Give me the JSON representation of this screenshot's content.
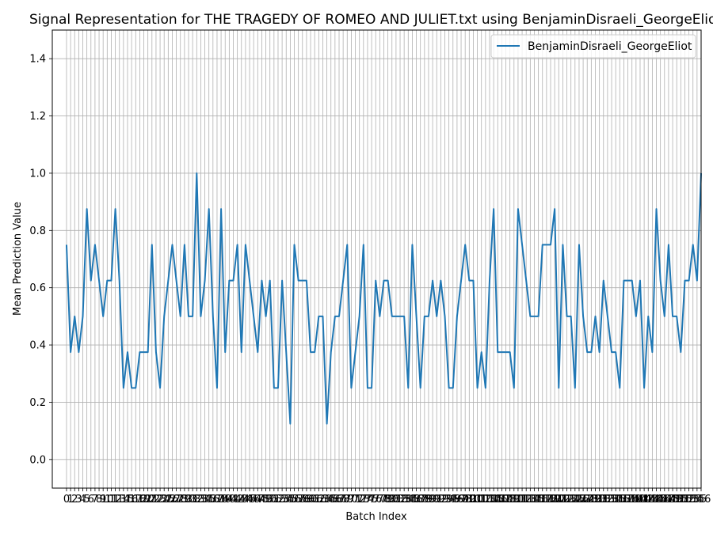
{
  "chart_data": {
    "type": "line",
    "title": "Signal Representation for THE TRAGEDY OF ROMEO AND JULIET.txt using BenjaminDisraeli_GeorgeEliot",
    "xlabel": "Batch Index",
    "ylabel": "Mean Prediction Value",
    "ylim": [
      -0.1,
      1.5
    ],
    "xlim": [
      -3.5,
      156
    ],
    "yticks": [
      "0.0",
      "0.2",
      "0.4",
      "0.6",
      "0.8",
      "1.0",
      "1.2",
      "1.4"
    ],
    "grid": true,
    "legend_position": "top-right",
    "line_color": "#1f77b4",
    "series": [
      {
        "name": "BenjaminDisraeli_GeorgeEliot",
        "values": [
          0.75,
          0.375,
          0.5,
          0.375,
          0.5,
          0.875,
          0.625,
          0.75,
          0.625,
          0.5,
          0.625,
          0.625,
          0.875,
          0.625,
          0.25,
          0.375,
          0.25,
          0.25,
          0.375,
          0.375,
          0.375,
          0.75,
          0.375,
          0.25,
          0.5,
          0.625,
          0.75,
          0.625,
          0.5,
          0.75,
          0.5,
          0.5,
          1.0,
          0.5,
          0.625,
          0.875,
          0.5,
          0.25,
          0.875,
          0.375,
          0.625,
          0.625,
          0.75,
          0.375,
          0.75,
          0.625,
          0.5,
          0.375,
          0.625,
          0.5,
          0.625,
          0.25,
          0.25,
          0.625,
          0.375,
          0.125,
          0.75,
          0.625,
          0.625,
          0.625,
          0.375,
          0.375,
          0.5,
          0.5,
          0.125,
          0.375,
          0.5,
          0.5,
          0.625,
          0.75,
          0.25,
          0.375,
          0.5,
          0.75,
          0.25,
          0.25,
          0.625,
          0.5,
          0.625,
          0.625,
          0.5,
          0.5,
          0.5,
          0.5,
          0.25,
          0.75,
          0.5,
          0.25,
          0.5,
          0.5,
          0.625,
          0.5,
          0.625,
          0.5,
          0.25,
          0.25,
          0.5,
          0.625,
          0.75,
          0.625,
          0.625,
          0.25,
          0.375,
          0.25,
          0.625,
          0.875,
          0.375,
          0.375,
          0.375,
          0.375,
          0.25,
          0.875,
          0.75,
          0.625,
          0.5,
          0.5,
          0.5,
          0.75,
          0.75,
          0.75,
          0.875,
          0.25,
          0.75,
          0.5,
          0.5,
          0.25,
          0.75,
          0.5,
          0.375,
          0.375,
          0.5,
          0.375,
          0.625,
          0.5,
          0.375,
          0.375,
          0.25,
          0.625,
          0.625,
          0.625,
          0.5,
          0.625,
          0.25,
          0.5,
          0.375,
          0.875,
          0.625,
          0.5,
          0.75,
          0.5,
          0.5,
          0.375,
          0.625,
          0.625,
          0.75,
          0.625,
          1.0
        ]
      }
    ]
  }
}
